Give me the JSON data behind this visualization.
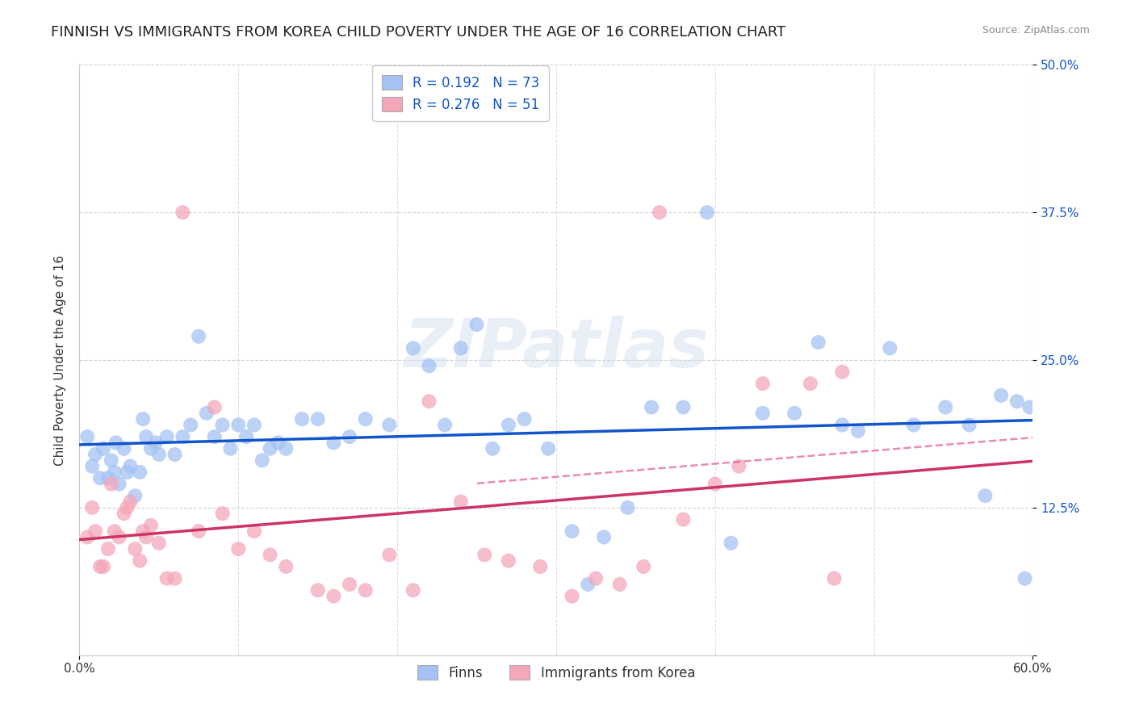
{
  "title": "FINNISH VS IMMIGRANTS FROM KOREA CHILD POVERTY UNDER THE AGE OF 16 CORRELATION CHART",
  "source": "Source: ZipAtlas.com",
  "ylabel": "Child Poverty Under the Age of 16",
  "xmin": 0.0,
  "xmax": 0.6,
  "ymin": 0.0,
  "ymax": 0.5,
  "yticks": [
    0.0,
    0.125,
    0.25,
    0.375,
    0.5
  ],
  "ytick_labels": [
    "",
    "12.5%",
    "25.0%",
    "37.5%",
    "50.0%"
  ],
  "finns_R": 0.192,
  "finns_N": 73,
  "korea_R": 0.276,
  "korea_N": 51,
  "legend_labels": [
    "Finns",
    "Immigrants from Korea"
  ],
  "blue_color": "#a4c2f4",
  "pink_color": "#f4a7b9",
  "blue_scatter_alpha": 0.75,
  "pink_scatter_alpha": 0.75,
  "blue_line_color": "#1155cc",
  "pink_line_color": "#cc3366",
  "pink_dash_color": "#e06080",
  "watermark": "ZIPatlas",
  "title_fontsize": 13,
  "axis_label_fontsize": 11,
  "tick_fontsize": 11,
  "legend_fontsize": 12,
  "finns_x": [
    0.005,
    0.008,
    0.01,
    0.013,
    0.015,
    0.018,
    0.02,
    0.022,
    0.023,
    0.025,
    0.028,
    0.03,
    0.032,
    0.035,
    0.038,
    0.04,
    0.042,
    0.045,
    0.048,
    0.05,
    0.055,
    0.06,
    0.065,
    0.07,
    0.075,
    0.08,
    0.085,
    0.09,
    0.095,
    0.1,
    0.105,
    0.11,
    0.115,
    0.12,
    0.125,
    0.13,
    0.14,
    0.15,
    0.16,
    0.17,
    0.18,
    0.195,
    0.21,
    0.22,
    0.23,
    0.24,
    0.25,
    0.26,
    0.27,
    0.28,
    0.295,
    0.31,
    0.32,
    0.33,
    0.345,
    0.36,
    0.38,
    0.395,
    0.41,
    0.43,
    0.45,
    0.465,
    0.48,
    0.49,
    0.51,
    0.525,
    0.545,
    0.56,
    0.57,
    0.58,
    0.59,
    0.595,
    0.598
  ],
  "finns_y": [
    0.185,
    0.16,
    0.17,
    0.15,
    0.175,
    0.15,
    0.165,
    0.155,
    0.18,
    0.145,
    0.175,
    0.155,
    0.16,
    0.135,
    0.155,
    0.2,
    0.185,
    0.175,
    0.18,
    0.17,
    0.185,
    0.17,
    0.185,
    0.195,
    0.27,
    0.205,
    0.185,
    0.195,
    0.175,
    0.195,
    0.185,
    0.195,
    0.165,
    0.175,
    0.18,
    0.175,
    0.2,
    0.2,
    0.18,
    0.185,
    0.2,
    0.195,
    0.26,
    0.245,
    0.195,
    0.26,
    0.28,
    0.175,
    0.195,
    0.2,
    0.175,
    0.105,
    0.06,
    0.1,
    0.125,
    0.21,
    0.21,
    0.375,
    0.095,
    0.205,
    0.205,
    0.265,
    0.195,
    0.19,
    0.26,
    0.195,
    0.21,
    0.195,
    0.135,
    0.22,
    0.215,
    0.065,
    0.21
  ],
  "korea_x": [
    0.005,
    0.008,
    0.01,
    0.013,
    0.015,
    0.018,
    0.02,
    0.022,
    0.025,
    0.028,
    0.03,
    0.032,
    0.035,
    0.038,
    0.04,
    0.042,
    0.045,
    0.05,
    0.055,
    0.06,
    0.065,
    0.075,
    0.085,
    0.09,
    0.1,
    0.11,
    0.12,
    0.13,
    0.15,
    0.16,
    0.17,
    0.18,
    0.195,
    0.21,
    0.22,
    0.24,
    0.255,
    0.27,
    0.29,
    0.31,
    0.325,
    0.34,
    0.355,
    0.365,
    0.38,
    0.4,
    0.415,
    0.43,
    0.46,
    0.475,
    0.48
  ],
  "korea_y": [
    0.1,
    0.125,
    0.105,
    0.075,
    0.075,
    0.09,
    0.145,
    0.105,
    0.1,
    0.12,
    0.125,
    0.13,
    0.09,
    0.08,
    0.105,
    0.1,
    0.11,
    0.095,
    0.065,
    0.065,
    0.375,
    0.105,
    0.21,
    0.12,
    0.09,
    0.105,
    0.085,
    0.075,
    0.055,
    0.05,
    0.06,
    0.055,
    0.085,
    0.055,
    0.215,
    0.13,
    0.085,
    0.08,
    0.075,
    0.05,
    0.065,
    0.06,
    0.075,
    0.375,
    0.115,
    0.145,
    0.16,
    0.23,
    0.23,
    0.065,
    0.24
  ]
}
